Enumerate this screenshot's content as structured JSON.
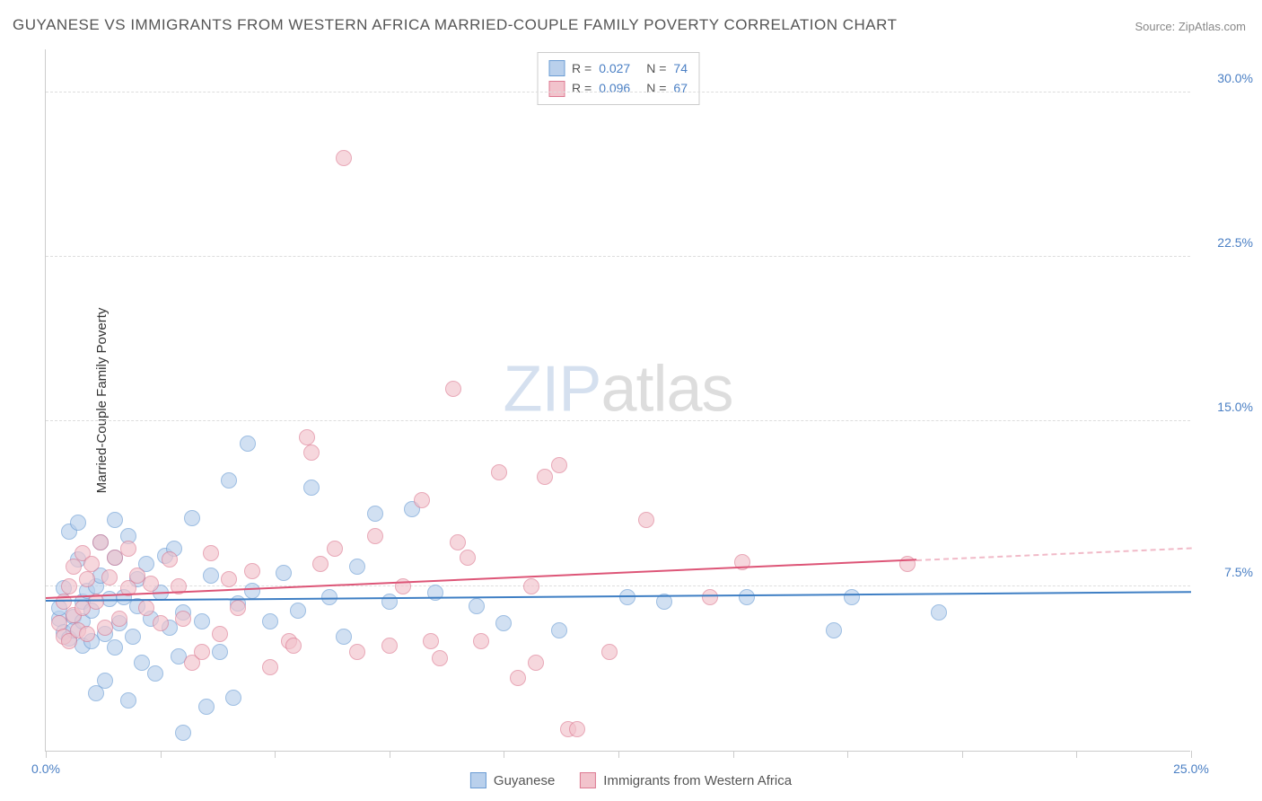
{
  "title": "GUYANESE VS IMMIGRANTS FROM WESTERN AFRICA MARRIED-COUPLE FAMILY POVERTY CORRELATION CHART",
  "source": "Source: ZipAtlas.com",
  "y_axis_label": "Married-Couple Family Poverty",
  "watermark_bold": "ZIP",
  "watermark_thin": "atlas",
  "chart": {
    "type": "scatter",
    "background_color": "#ffffff",
    "grid_color": "#dddddd",
    "axis_color": "#cccccc",
    "x_domain": [
      0,
      25
    ],
    "y_domain": [
      0,
      32
    ],
    "y_ticks": [
      {
        "value": 7.5,
        "label": "7.5%"
      },
      {
        "value": 15.0,
        "label": "15.0%"
      },
      {
        "value": 22.5,
        "label": "22.5%"
      },
      {
        "value": 30.0,
        "label": "30.0%"
      }
    ],
    "x_ticks": [
      0,
      2.5,
      5,
      7.5,
      10,
      12.5,
      15,
      17.5,
      20,
      22.5,
      25
    ],
    "x_tick_labels": [
      {
        "value": 0,
        "label": "0.0%"
      },
      {
        "value": 25,
        "label": "25.0%"
      }
    ],
    "point_radius": 9,
    "point_stroke_width": 1,
    "series": [
      {
        "name": "Guyanese",
        "fill_color": "#b9d0ec",
        "stroke_color": "#6a9cd4",
        "fill_opacity": 0.65,
        "stats": {
          "R_label": "R =",
          "R": "0.027",
          "N_label": "N =",
          "N": "74"
        },
        "trend": {
          "x1": 0,
          "y1": 6.8,
          "x2": 25,
          "y2": 7.2,
          "solid_end_x": 25,
          "color": "#3f7fc4",
          "width": 2
        },
        "points": [
          [
            0.3,
            6.0
          ],
          [
            0.3,
            6.5
          ],
          [
            0.4,
            5.4
          ],
          [
            0.4,
            7.4
          ],
          [
            0.5,
            5.1
          ],
          [
            0.5,
            10.0
          ],
          [
            0.6,
            6.1
          ],
          [
            0.6,
            5.5
          ],
          [
            0.7,
            8.7
          ],
          [
            0.7,
            10.4
          ],
          [
            0.8,
            4.8
          ],
          [
            0.8,
            5.9
          ],
          [
            0.8,
            6.8
          ],
          [
            0.9,
            7.3
          ],
          [
            1.0,
            5.0
          ],
          [
            1.0,
            6.4
          ],
          [
            1.1,
            7.5
          ],
          [
            1.1,
            2.6
          ],
          [
            1.2,
            9.5
          ],
          [
            1.2,
            8.0
          ],
          [
            1.3,
            5.3
          ],
          [
            1.3,
            3.2
          ],
          [
            1.4,
            6.9
          ],
          [
            1.5,
            4.7
          ],
          [
            1.5,
            10.5
          ],
          [
            1.5,
            8.8
          ],
          [
            1.6,
            5.8
          ],
          [
            1.7,
            7.0
          ],
          [
            1.8,
            2.3
          ],
          [
            1.8,
            9.8
          ],
          [
            1.9,
            5.2
          ],
          [
            2.0,
            6.6
          ],
          [
            2.0,
            7.8
          ],
          [
            2.1,
            4.0
          ],
          [
            2.2,
            8.5
          ],
          [
            2.3,
            6.0
          ],
          [
            2.4,
            3.5
          ],
          [
            2.5,
            7.2
          ],
          [
            2.6,
            8.9
          ],
          [
            2.7,
            5.6
          ],
          [
            2.8,
            9.2
          ],
          [
            2.9,
            4.3
          ],
          [
            3.0,
            6.3
          ],
          [
            3.0,
            0.8
          ],
          [
            3.2,
            10.6
          ],
          [
            3.4,
            5.9
          ],
          [
            3.5,
            2.0
          ],
          [
            3.6,
            8.0
          ],
          [
            3.8,
            4.5
          ],
          [
            4.0,
            12.3
          ],
          [
            4.1,
            2.4
          ],
          [
            4.2,
            6.7
          ],
          [
            4.4,
            14.0
          ],
          [
            4.5,
            7.3
          ],
          [
            4.9,
            5.9
          ],
          [
            5.2,
            8.1
          ],
          [
            5.5,
            6.4
          ],
          [
            5.8,
            12.0
          ],
          [
            6.2,
            7.0
          ],
          [
            6.5,
            5.2
          ],
          [
            6.8,
            8.4
          ],
          [
            7.2,
            10.8
          ],
          [
            7.5,
            6.8
          ],
          [
            8.0,
            11.0
          ],
          [
            8.5,
            7.2
          ],
          [
            9.4,
            6.6
          ],
          [
            10.0,
            5.8
          ],
          [
            11.2,
            5.5
          ],
          [
            12.7,
            7.0
          ],
          [
            13.5,
            6.8
          ],
          [
            15.3,
            7.0
          ],
          [
            17.2,
            5.5
          ],
          [
            17.6,
            7.0
          ],
          [
            19.5,
            6.3
          ]
        ]
      },
      {
        "name": "Immigrants from Western Africa",
        "fill_color": "#f2c3cc",
        "stroke_color": "#dd7a92",
        "fill_opacity": 0.65,
        "stats": {
          "R_label": "R =",
          "R": "0.096",
          "N_label": "N =",
          "N": "67"
        },
        "trend": {
          "x1": 0,
          "y1": 6.9,
          "x2": 25,
          "y2": 9.2,
          "solid_end_x": 19,
          "color": "#dd5577",
          "width": 2
        },
        "points": [
          [
            0.3,
            5.8
          ],
          [
            0.4,
            5.2
          ],
          [
            0.4,
            6.8
          ],
          [
            0.5,
            7.5
          ],
          [
            0.5,
            5.0
          ],
          [
            0.6,
            6.2
          ],
          [
            0.6,
            8.4
          ],
          [
            0.7,
            5.5
          ],
          [
            0.8,
            9.0
          ],
          [
            0.8,
            6.5
          ],
          [
            0.9,
            5.3
          ],
          [
            0.9,
            7.8
          ],
          [
            1.0,
            8.5
          ],
          [
            1.1,
            6.8
          ],
          [
            1.2,
            9.5
          ],
          [
            1.3,
            5.6
          ],
          [
            1.4,
            7.9
          ],
          [
            1.5,
            8.8
          ],
          [
            1.6,
            6.0
          ],
          [
            1.8,
            9.2
          ],
          [
            1.8,
            7.4
          ],
          [
            2.0,
            8.0
          ],
          [
            2.2,
            6.5
          ],
          [
            2.3,
            7.6
          ],
          [
            2.5,
            5.8
          ],
          [
            2.7,
            8.7
          ],
          [
            2.9,
            7.5
          ],
          [
            3.0,
            6.0
          ],
          [
            3.2,
            4.0
          ],
          [
            3.4,
            4.5
          ],
          [
            3.6,
            9.0
          ],
          [
            3.8,
            5.3
          ],
          [
            4.0,
            7.8
          ],
          [
            4.2,
            6.5
          ],
          [
            4.5,
            8.2
          ],
          [
            4.9,
            3.8
          ],
          [
            5.3,
            5.0
          ],
          [
            5.4,
            4.8
          ],
          [
            5.7,
            14.3
          ],
          [
            5.8,
            13.6
          ],
          [
            6.0,
            8.5
          ],
          [
            6.3,
            9.2
          ],
          [
            6.5,
            27.0
          ],
          [
            6.8,
            4.5
          ],
          [
            7.2,
            9.8
          ],
          [
            7.5,
            4.8
          ],
          [
            7.8,
            7.5
          ],
          [
            8.2,
            11.4
          ],
          [
            8.6,
            4.2
          ],
          [
            8.9,
            16.5
          ],
          [
            9.2,
            8.8
          ],
          [
            9.5,
            5.0
          ],
          [
            9.9,
            12.7
          ],
          [
            10.3,
            3.3
          ],
          [
            10.6,
            7.5
          ],
          [
            10.7,
            4.0
          ],
          [
            10.9,
            12.5
          ],
          [
            11.2,
            13.0
          ],
          [
            11.4,
            1.0
          ],
          [
            11.6,
            1.0
          ],
          [
            12.3,
            4.5
          ],
          [
            13.1,
            10.5
          ],
          [
            14.5,
            7.0
          ],
          [
            15.2,
            8.6
          ],
          [
            18.8,
            8.5
          ],
          [
            8.4,
            5.0
          ],
          [
            9.0,
            9.5
          ]
        ]
      }
    ]
  },
  "legend_bottom": [
    {
      "swatch_fill": "#b9d0ec",
      "swatch_stroke": "#6a9cd4",
      "label": "Guyanese"
    },
    {
      "swatch_fill": "#f2c3cc",
      "swatch_stroke": "#dd7a92",
      "label": "Immigrants from Western Africa"
    }
  ]
}
